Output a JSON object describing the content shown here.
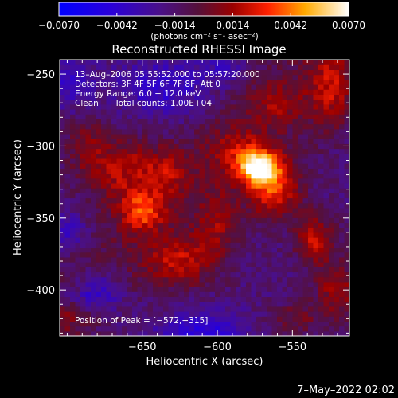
{
  "chart_data": {
    "type": "heatmap",
    "title": "Reconstructed RHESSI Image",
    "colorbar": {
      "ticks": [
        "-0.0070",
        "-0.0042",
        "-0.0014",
        "0.0014",
        "0.0042",
        "0.0070"
      ],
      "range": [
        -0.007,
        0.007
      ],
      "units_label": "(photons cm⁻² s⁻¹ asec⁻²)"
    },
    "xlabel": "Heliocentric X (arcsec)",
    "ylabel": "Heliocentric Y (arcsec)",
    "xlim": [
      -705,
      -512
    ],
    "ylim": [
      -432,
      -240
    ],
    "xticks": [
      -650,
      -600,
      -550
    ],
    "xtick_labels": [
      "−650",
      "−600",
      "−550"
    ],
    "yticks": [
      -250,
      -300,
      -350,
      -400
    ],
    "ytick_labels": [
      "−250",
      "−300",
      "−350",
      "−400"
    ],
    "annotations": {
      "time": "13–Aug–2006 05:55:52.000 to 05:57:20.000",
      "detectors": "Detectors: 3F 4F 5F 6F 7F 8F, Att 0",
      "energy": "Energy Range: 6.0 − 12.0 keV",
      "clean": "Clean",
      "counts": "Total counts: 1.00E+04",
      "peak": "Position of Peak = [−572,−315]"
    },
    "peak": {
      "x": -572,
      "y": -315
    },
    "features": [
      {
        "x": -572,
        "y": -315,
        "sx": 9,
        "sy": 8,
        "amp": 0.007
      },
      {
        "x": -562,
        "y": -330,
        "sx": 12,
        "sy": 14,
        "amp": 0.0042
      },
      {
        "x": -585,
        "y": -305,
        "sx": 14,
        "sy": 12,
        "amp": 0.0025
      },
      {
        "x": -650,
        "y": -345,
        "sx": 10,
        "sy": 10,
        "amp": 0.004
      },
      {
        "x": -665,
        "y": -315,
        "sx": 14,
        "sy": 16,
        "amp": 0.0028
      },
      {
        "x": -635,
        "y": -318,
        "sx": 12,
        "sy": 12,
        "amp": 0.0024
      },
      {
        "x": -625,
        "y": -380,
        "sx": 16,
        "sy": 12,
        "amp": 0.003
      },
      {
        "x": -600,
        "y": -355,
        "sx": 10,
        "sy": 16,
        "amp": 0.0022
      },
      {
        "x": -535,
        "y": -365,
        "sx": 9,
        "sy": 12,
        "amp": 0.0035
      },
      {
        "x": -520,
        "y": -400,
        "sx": 10,
        "sy": 14,
        "amp": 0.003
      },
      {
        "x": -525,
        "y": -260,
        "sx": 10,
        "sy": 18,
        "amp": 0.0028
      },
      {
        "x": -560,
        "y": -270,
        "sx": 12,
        "sy": 10,
        "amp": 0.0018
      },
      {
        "x": -688,
        "y": -300,
        "sx": 9,
        "sy": 14,
        "amp": 0.002
      },
      {
        "x": -548,
        "y": -420,
        "sx": 12,
        "sy": 8,
        "amp": 0.0018
      },
      {
        "x": -700,
        "y": -420,
        "sx": 12,
        "sy": 8,
        "amp": 0.0016
      },
      {
        "x": -680,
        "y": -400,
        "sx": 12,
        "sy": 10,
        "amp": -0.0028
      },
      {
        "x": -610,
        "y": -430,
        "sx": 20,
        "sy": 10,
        "amp": -0.003
      },
      {
        "x": -635,
        "y": -260,
        "sx": 22,
        "sy": 14,
        "amp": -0.0024
      },
      {
        "x": -700,
        "y": -255,
        "sx": 12,
        "sy": 12,
        "amp": -0.002
      },
      {
        "x": -595,
        "y": -245,
        "sx": 10,
        "sy": 8,
        "amp": -0.0018
      },
      {
        "x": -700,
        "y": -360,
        "sx": 10,
        "sy": 10,
        "amp": -0.0022
      }
    ]
  },
  "footer": {
    "date": "7–May–2022 02:02"
  }
}
